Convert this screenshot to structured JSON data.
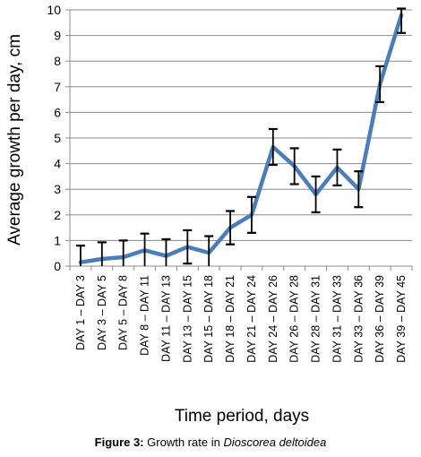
{
  "chart_data": {
    "type": "line",
    "categories": [
      "DAY 1 – DAY 3",
      "DAY 3 – DAY 5",
      "DAY 5 – DAY 8",
      "DAY 8 – DAY 11",
      "DAY 11 – DAY 13",
      "DAY 13 – DAY 15",
      "DAY 15 – DAY 18",
      "DAY 18 – DAY 21",
      "DAY 21 – DAY 24",
      "DAY 24 – DAY 26",
      "DAY 26 – DAY 28",
      "DAY 28 – DAY 31",
      "DAY 31 – DAY 33",
      "DAY 33 – DAY 36",
      "DAY 36 – DAY 39",
      "DAY 39 – DAY 45"
    ],
    "series": [
      {
        "values": [
          0.15,
          0.28,
          0.35,
          0.62,
          0.4,
          0.75,
          0.52,
          1.5,
          2.0,
          4.65,
          3.9,
          2.8,
          3.85,
          3.0,
          7.1,
          9.8
        ],
        "error": [
          0.65,
          0.65,
          0.65,
          0.65,
          0.65,
          0.65,
          0.65,
          0.65,
          0.7,
          0.7,
          0.7,
          0.7,
          0.7,
          0.7,
          0.7,
          0.7
        ],
        "color": "#4a7ebb"
      }
    ],
    "xlabel": "Time period, days",
    "ylabel": "Average growth per day, cm",
    "ylim": [
      0,
      10
    ],
    "yticks": [
      "0",
      "1",
      "2",
      "3",
      "4",
      "5",
      "6",
      "7",
      "8",
      "9",
      "10"
    ],
    "grid": true,
    "legend": "none"
  },
  "caption": {
    "label": "Figure 3:",
    "text": " Growth rate in ",
    "species": "Dioscorea deltoidea"
  }
}
